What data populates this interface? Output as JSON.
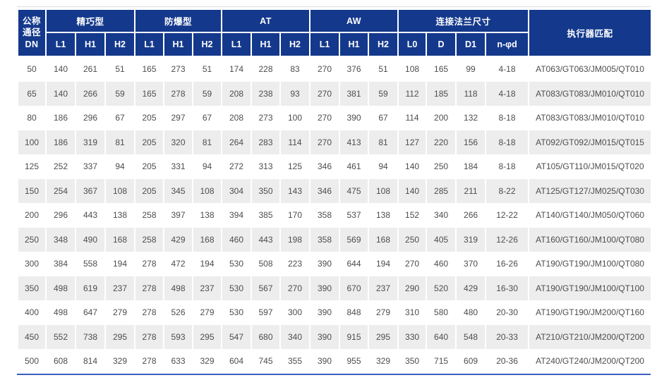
{
  "colors": {
    "header_blue": "#14398c",
    "stripe_gray": "#ededed",
    "body_text": "#4d4d4d",
    "bottom_rule_blue": "#3d5ebe",
    "header_text": "#ffffff"
  },
  "table": {
    "dn_header": "公称\n通径\nDN",
    "actuator_header": "执行器匹配",
    "groups": [
      {
        "label": "精巧型",
        "children": [
          "L1",
          "H1",
          "H2"
        ]
      },
      {
        "label": "防爆型",
        "children": [
          "L1",
          "H1",
          "H2"
        ]
      },
      {
        "label": "AT",
        "children": [
          "L1",
          "H1",
          "H2"
        ]
      },
      {
        "label": "AW",
        "children": [
          "L1",
          "H1",
          "H2"
        ]
      },
      {
        "label": "连接法兰尺寸",
        "children": [
          "L0",
          "D",
          "D1",
          "n-φd"
        ]
      }
    ],
    "rows": [
      {
        "dn": "50",
        "compact": [
          "140",
          "261",
          "51"
        ],
        "explosion_proof": [
          "165",
          "273",
          "51"
        ],
        "at": [
          "174",
          "228",
          "83"
        ],
        "aw": [
          "270",
          "376",
          "51"
        ],
        "flange": [
          "108",
          "165",
          "99",
          "4-18"
        ],
        "actuator": "AT063/GT063/JM005/QT010"
      },
      {
        "dn": "65",
        "compact": [
          "140",
          "266",
          "59"
        ],
        "explosion_proof": [
          "165",
          "278",
          "59"
        ],
        "at": [
          "208",
          "238",
          "93"
        ],
        "aw": [
          "270",
          "381",
          "59"
        ],
        "flange": [
          "112",
          "185",
          "118",
          "4-18"
        ],
        "actuator": "AT083/GT083/JM010/QT010"
      },
      {
        "dn": "80",
        "compact": [
          "186",
          "296",
          "67"
        ],
        "explosion_proof": [
          "205",
          "297",
          "67"
        ],
        "at": [
          "208",
          "273",
          "100"
        ],
        "aw": [
          "270",
          "390",
          "67"
        ],
        "flange": [
          "114",
          "200",
          "132",
          "8-18"
        ],
        "actuator": "AT083/GT083/JM010/QT010"
      },
      {
        "dn": "100",
        "compact": [
          "186",
          "319",
          "81"
        ],
        "explosion_proof": [
          "205",
          "320",
          "81"
        ],
        "at": [
          "264",
          "283",
          "114"
        ],
        "aw": [
          "270",
          "413",
          "81"
        ],
        "flange": [
          "127",
          "220",
          "156",
          "8-18"
        ],
        "actuator": "AT092/GT092/JM015/QT015"
      },
      {
        "dn": "125",
        "compact": [
          "252",
          "337",
          "94"
        ],
        "explosion_proof": [
          "205",
          "331",
          "94"
        ],
        "at": [
          "272",
          "313",
          "125"
        ],
        "aw": [
          "346",
          "461",
          "94"
        ],
        "flange": [
          "140",
          "250",
          "184",
          "8-18"
        ],
        "actuator": "AT105/GT110/JM015/QT020"
      },
      {
        "dn": "150",
        "compact": [
          "254",
          "367",
          "108"
        ],
        "explosion_proof": [
          "205",
          "345",
          "108"
        ],
        "at": [
          "304",
          "350",
          "143"
        ],
        "aw": [
          "346",
          "475",
          "108"
        ],
        "flange": [
          "140",
          "285",
          "211",
          "8-22"
        ],
        "actuator": "AT125/GT127/JM025/QT030"
      },
      {
        "dn": "200",
        "compact": [
          "296",
          "443",
          "138"
        ],
        "explosion_proof": [
          "258",
          "397",
          "138"
        ],
        "at": [
          "394",
          "385",
          "170"
        ],
        "aw": [
          "358",
          "537",
          "138"
        ],
        "flange": [
          "152",
          "340",
          "266",
          "12-22"
        ],
        "actuator": "AT140/GT140/JM050/QT060"
      },
      {
        "dn": "250",
        "compact": [
          "348",
          "490",
          "168"
        ],
        "explosion_proof": [
          "258",
          "429",
          "168"
        ],
        "at": [
          "460",
          "443",
          "198"
        ],
        "aw": [
          "358",
          "569",
          "168"
        ],
        "flange": [
          "250",
          "405",
          "319",
          "12-26"
        ],
        "actuator": "AT160/GT160/JM100/QT080"
      },
      {
        "dn": "300",
        "compact": [
          "384",
          "558",
          "194"
        ],
        "explosion_proof": [
          "278",
          "472",
          "194"
        ],
        "at": [
          "530",
          "508",
          "223"
        ],
        "aw": [
          "390",
          "644",
          "194"
        ],
        "flange": [
          "270",
          "460",
          "370",
          "16-26"
        ],
        "actuator": "AT190/GT190/JM100/QT080"
      },
      {
        "dn": "350",
        "compact": [
          "498",
          "619",
          "237"
        ],
        "explosion_proof": [
          "278",
          "498",
          "237"
        ],
        "at": [
          "530",
          "567",
          "270"
        ],
        "aw": [
          "390",
          "670",
          "237"
        ],
        "flange": [
          "290",
          "520",
          "429",
          "16-30"
        ],
        "actuator": "AT190/GT190/JM100/QT100"
      },
      {
        "dn": "400",
        "compact": [
          "498",
          "647",
          "279"
        ],
        "explosion_proof": [
          "278",
          "526",
          "279"
        ],
        "at": [
          "530",
          "597",
          "300"
        ],
        "aw": [
          "390",
          "848",
          "279"
        ],
        "flange": [
          "310",
          "580",
          "480",
          "20-30"
        ],
        "actuator": "AT190/GT190/JM200/QT160"
      },
      {
        "dn": "450",
        "compact": [
          "552",
          "738",
          "295"
        ],
        "explosion_proof": [
          "278",
          "593",
          "295"
        ],
        "at": [
          "547",
          "680",
          "340"
        ],
        "aw": [
          "390",
          "915",
          "295"
        ],
        "flange": [
          "330",
          "640",
          "548",
          "20-33"
        ],
        "actuator": "AT210/GT210/JM200/QT200"
      },
      {
        "dn": "500",
        "compact": [
          "608",
          "814",
          "329"
        ],
        "explosion_proof": [
          "278",
          "633",
          "329"
        ],
        "at": [
          "604",
          "745",
          "355"
        ],
        "aw": [
          "390",
          "955",
          "329"
        ],
        "flange": [
          "350",
          "715",
          "609",
          "20-36"
        ],
        "actuator": "AT240/GT240/JM200/QT200"
      }
    ]
  }
}
